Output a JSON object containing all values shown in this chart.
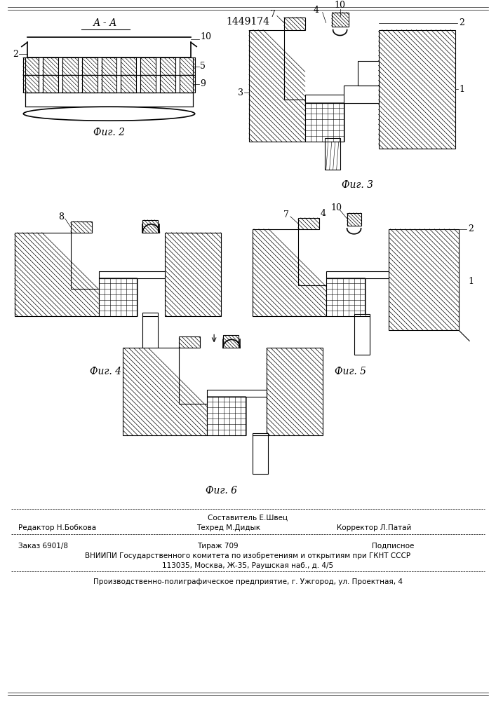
{
  "patent_number": "1449174",
  "section_label": "А - А",
  "fig_labels": [
    "Фиг. 2",
    "Фиг. 3",
    "Фиг. 4",
    "Фиг. 5",
    "Фиг. 6"
  ],
  "footer_line1_center": "Составитель Е.Швец",
  "footer_line2_left": "Редактор Н.Бобкова",
  "footer_line2_center": "Техред М.Дидык",
  "footer_line2_right": "Корректор Л.Патай",
  "footer_line3_left": "Заказ 6901/8",
  "footer_line3_center": "Тираж 709",
  "footer_line3_right": "Подписное",
  "footer_line4": "ВНИИПИ Государственного комитета по изобретениям и открытиям при ГКНТ СССР",
  "footer_line5": "113035, Москва, Ж-35, Раушская наб., д. 4/5",
  "footer_line6": "Производственно-полиграфическое предприятие, г. Ужгород, ул. Проектная, 4",
  "bg_color": "#ffffff",
  "lc": "#000000"
}
